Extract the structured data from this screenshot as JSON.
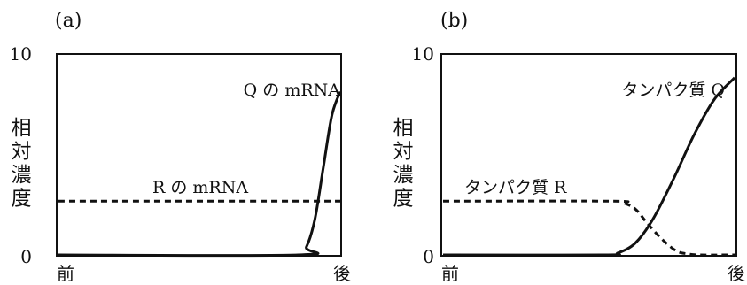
{
  "chart_data": [
    {
      "panel_label": "(a)",
      "type": "line",
      "ylabel": "相対濃度",
      "ylim": [
        0,
        10
      ],
      "y_ticks": [
        "10",
        "0"
      ],
      "x_labels": [
        "前",
        "後"
      ],
      "xlim": [
        0,
        1
      ],
      "series": [
        {
          "name": "QのmRNA",
          "label_text": "Q の mRNA",
          "style": "solid",
          "points": [
            [
              0,
              0
            ],
            [
              0.85,
              0
            ],
            [
              0.88,
              0.4
            ],
            [
              0.91,
              1.8
            ],
            [
              0.94,
              4.4
            ],
            [
              0.97,
              7.0
            ],
            [
              1.0,
              8.2
            ]
          ]
        },
        {
          "name": "RのmRNA",
          "label_text": "R の mRNA",
          "style": "dashed",
          "points": [
            [
              0,
              2.7
            ],
            [
              1.0,
              2.7
            ]
          ]
        }
      ]
    },
    {
      "panel_label": "(b)",
      "type": "line",
      "ylabel": "相対濃度",
      "ylim": [
        0,
        10
      ],
      "y_ticks": [
        "10",
        "0"
      ],
      "x_labels": [
        "前",
        "後"
      ],
      "xlim": [
        0,
        1
      ],
      "series": [
        {
          "name": "タンパク質Q",
          "label_text": "タンパク質 Q",
          "style": "solid",
          "points": [
            [
              0,
              0
            ],
            [
              0.55,
              0
            ],
            [
              0.6,
              0.1
            ],
            [
              0.66,
              0.6
            ],
            [
              0.72,
              1.8
            ],
            [
              0.79,
              3.8
            ],
            [
              0.86,
              6.0
            ],
            [
              0.93,
              7.8
            ],
            [
              1.0,
              8.9
            ]
          ]
        },
        {
          "name": "タンパク質R",
          "label_text": "タンパク質 R",
          "style": "dashed",
          "points": [
            [
              0,
              2.7
            ],
            [
              0.58,
              2.7
            ],
            [
              0.62,
              2.6
            ],
            [
              0.66,
              2.3
            ],
            [
              0.7,
              1.6
            ],
            [
              0.75,
              0.8
            ],
            [
              0.8,
              0.2
            ],
            [
              0.84,
              0.05
            ],
            [
              0.88,
              0
            ],
            [
              1.0,
              0
            ]
          ]
        }
      ]
    }
  ],
  "colors": {
    "ink": "#111111",
    "background": "#ffffff"
  }
}
